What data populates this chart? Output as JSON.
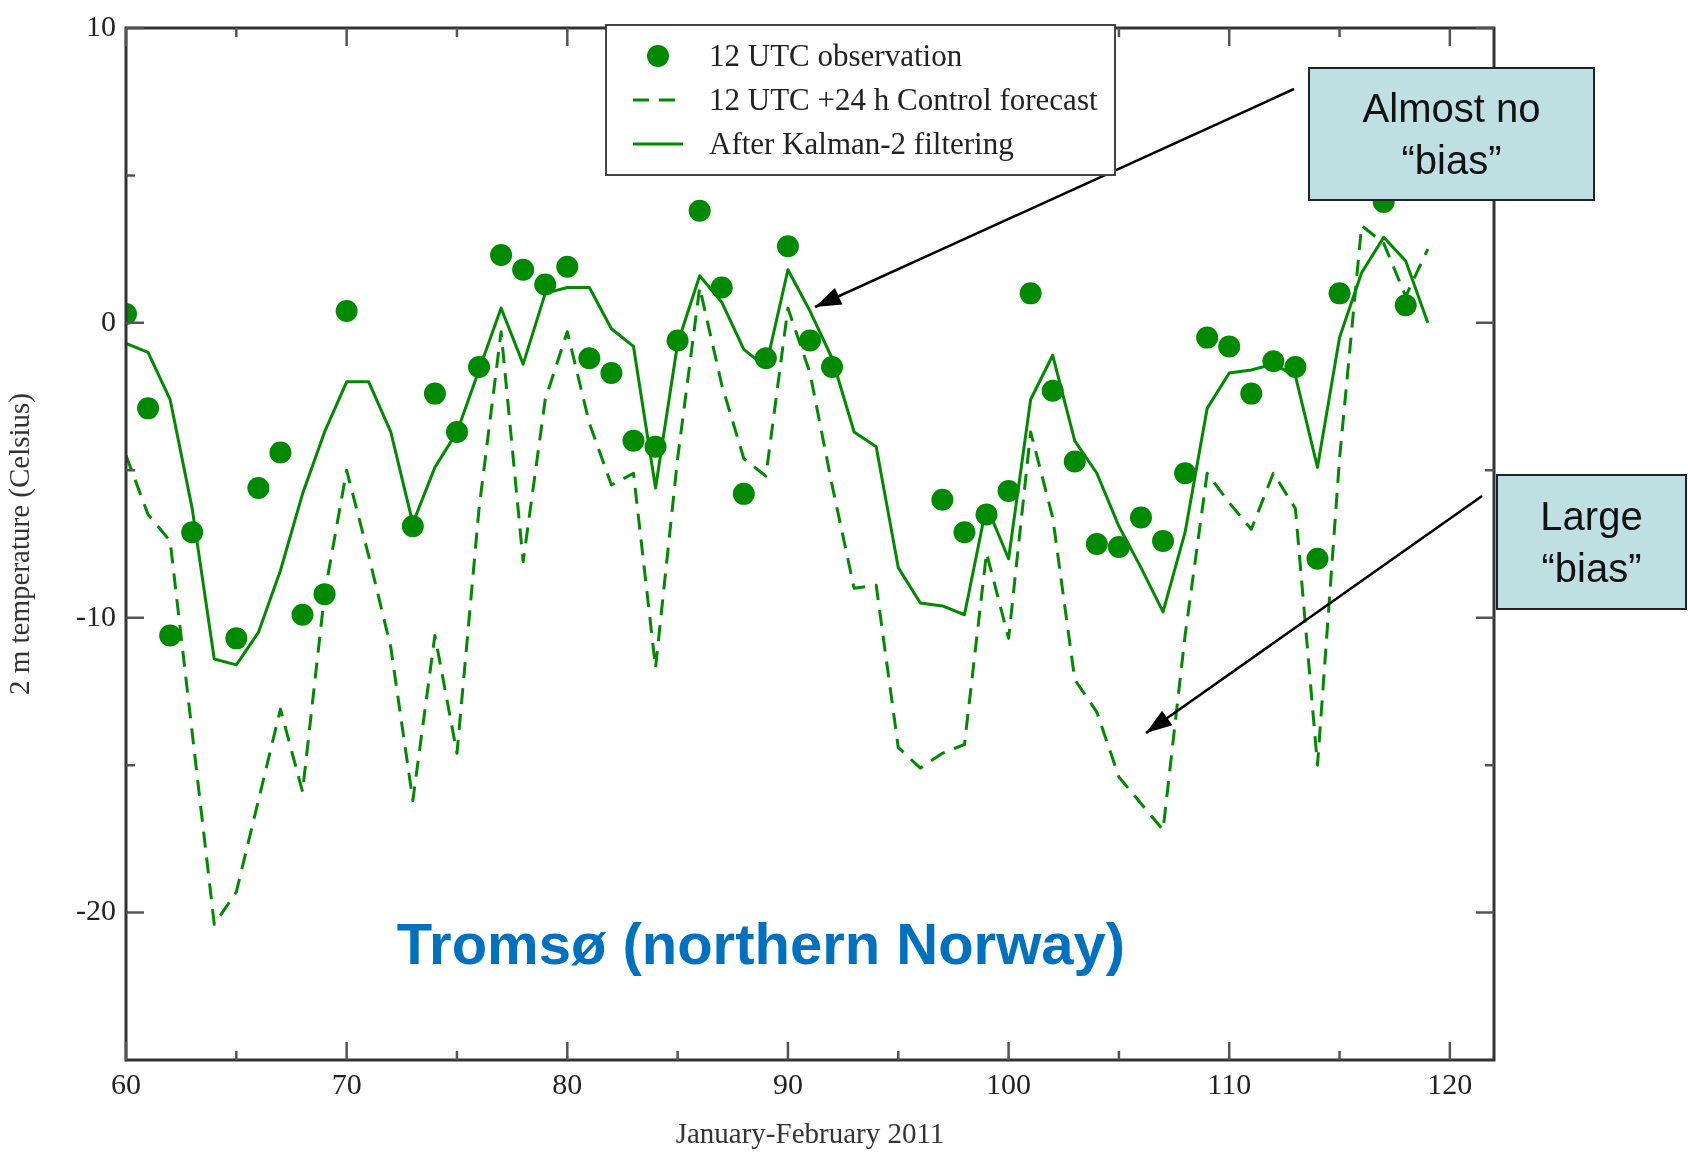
{
  "chart_data": {
    "type": "line",
    "xlabel": "January-February 2011",
    "ylabel": "2 m temperature (Celsius)",
    "xlim": [
      60,
      122
    ],
    "xticks": [
      60,
      {
        "value": 65,
        "label": null
      },
      70,
      {
        "value": 75,
        "label": null
      },
      80,
      {
        "value": 85,
        "label": null
      },
      90,
      {
        "value": 95,
        "label": null
      },
      100,
      {
        "value": 105,
        "label": null
      },
      110,
      {
        "value": 115,
        "label": null
      },
      120
    ],
    "ylim": [
      -25,
      10
    ],
    "yticks": [
      -20,
      {
        "value": -15,
        "label": null
      },
      -10,
      {
        "value": -5,
        "label": null
      },
      0,
      {
        "value": 5,
        "label": null
      },
      10
    ],
    "grid": false,
    "legend": "top",
    "series": [
      {
        "name": "12 UTC observation",
        "type": "scatter",
        "marker": "circle",
        "color": "#008a00",
        "x": [
          60,
          61,
          62,
          63,
          65,
          66,
          67,
          68,
          69,
          70,
          73,
          74,
          75,
          76,
          77,
          78,
          79,
          80,
          81,
          82,
          83,
          84,
          85,
          86,
          87,
          88,
          89,
          90,
          91,
          92,
          97,
          98,
          99,
          100,
          101,
          102,
          103,
          104,
          105,
          106,
          107,
          108,
          109,
          110,
          111,
          112,
          113,
          114,
          115,
          117,
          118
        ],
        "values": [
          0.3,
          -2.9,
          -10.6,
          -7.1,
          -10.7,
          -5.6,
          -4.4,
          -9.9,
          -9.2,
          0.4,
          -6.9,
          -2.4,
          -3.7,
          -1.5,
          2.3,
          1.8,
          1.3,
          1.9,
          -1.2,
          -1.7,
          -4.0,
          -4.2,
          -0.6,
          3.8,
          1.2,
          -5.8,
          -1.2,
          2.6,
          -0.6,
          -1.5,
          -6.0,
          -7.1,
          -6.5,
          -5.7,
          1.0,
          -2.3,
          -4.7,
          -7.5,
          -7.6,
          -6.6,
          -7.4,
          -5.1,
          -0.5,
          -0.8,
          -2.4,
          -1.3,
          -1.5,
          -8.0,
          1.0,
          4.1,
          0.6
        ]
      },
      {
        "name": "12 UTC +24 h Control forecast",
        "type": "line",
        "line_style": "dashed",
        "marker": "none",
        "color": "#008a00",
        "x": [
          60,
          61,
          62,
          63,
          64,
          65,
          66,
          67,
          68,
          69,
          70,
          71,
          72,
          73,
          74,
          75,
          76,
          77,
          78,
          79,
          80,
          81,
          82,
          83,
          84,
          85,
          86,
          87,
          88,
          89,
          90,
          91,
          92,
          93,
          94,
          95,
          96,
          97,
          98,
          99,
          100,
          101,
          102,
          103,
          104,
          105,
          106,
          107,
          108,
          109,
          110,
          111,
          112,
          113,
          114,
          115,
          116,
          117,
          118,
          119
        ],
        "values": [
          -4.5,
          -6.5,
          -7.4,
          -13.9,
          -20.4,
          -19.3,
          -16.2,
          -13.1,
          -15.9,
          -9.2,
          -5.0,
          -7.9,
          -11.0,
          -16.2,
          -10.6,
          -14.6,
          -6.3,
          -0.3,
          -8.1,
          -2.6,
          -0.3,
          -3.4,
          -5.5,
          -5.1,
          -11.7,
          -4.6,
          1.2,
          -2.1,
          -4.6,
          -5.2,
          0.5,
          -1.7,
          -5.5,
          -9.0,
          -8.9,
          -14.4,
          -15.1,
          -14.6,
          -14.3,
          -7.8,
          -10.7,
          -3.7,
          -6.6,
          -12.1,
          -13.2,
          -15.4,
          -16.3,
          -17.2,
          -10.6,
          -5.1,
          -6.1,
          -7.0,
          -5.1,
          -6.3,
          -15.0,
          -4.6,
          3.3,
          2.7,
          0.9,
          2.5
        ]
      },
      {
        "name": "After Kalman-2 filtering",
        "type": "line",
        "line_style": "solid",
        "marker": "none",
        "color": "#008a00",
        "x": [
          60,
          61,
          62,
          63,
          64,
          65,
          66,
          67,
          68,
          69,
          70,
          71,
          72,
          73,
          74,
          75,
          76,
          77,
          78,
          79,
          80,
          81,
          82,
          83,
          84,
          85,
          86,
          87,
          88,
          89,
          90,
          91,
          92,
          93,
          94,
          95,
          96,
          97,
          98,
          99,
          100,
          101,
          102,
          103,
          104,
          105,
          106,
          107,
          108,
          109,
          110,
          111,
          112,
          113,
          114,
          115,
          116,
          117,
          118,
          119
        ],
        "values": [
          -0.7,
          -1.0,
          -2.6,
          -6.3,
          -11.4,
          -11.6,
          -10.5,
          -8.4,
          -5.8,
          -3.7,
          -2.0,
          -2.0,
          -3.7,
          -6.8,
          -4.9,
          -3.7,
          -1.6,
          0.5,
          -1.4,
          1.0,
          1.2,
          1.2,
          -0.2,
          -0.8,
          -5.6,
          -0.7,
          1.6,
          0.7,
          -0.9,
          -1.5,
          1.8,
          0.4,
          -1.2,
          -3.7,
          -4.2,
          -8.3,
          -9.5,
          -9.6,
          -9.9,
          -6.2,
          -8.0,
          -2.6,
          -1.1,
          -4.0,
          -5.1,
          -6.9,
          -8.3,
          -9.8,
          -7.1,
          -2.9,
          -1.7,
          -1.6,
          -1.4,
          -1.8,
          -4.9,
          -0.5,
          1.7,
          2.9,
          2.1,
          0.0
        ]
      }
    ],
    "annotations": [
      "Almost no “bias”",
      "Large “bias”",
      "Tromsø (northern Norway)"
    ]
  }
}
